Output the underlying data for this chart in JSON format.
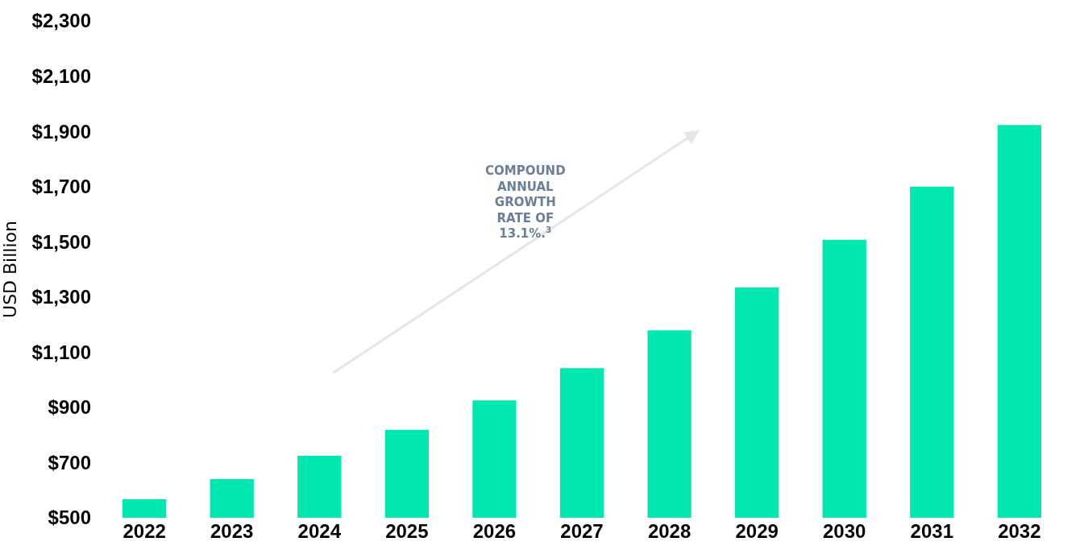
{
  "chart_data": {
    "type": "bar",
    "ylabel": "USD Billion",
    "categories": [
      "2022",
      "2023",
      "2024",
      "2025",
      "2026",
      "2027",
      "2028",
      "2029",
      "2030",
      "2031",
      "2032"
    ],
    "values": [
      567,
      640,
      725,
      819,
      925,
      1042,
      1179,
      1334,
      1507,
      1700,
      1923
    ],
    "color": "#00e8b0",
    "ylim": [
      500,
      2300
    ],
    "yticks": [
      {
        "value": 500,
        "label": "$500"
      },
      {
        "value": 700,
        "label": "$700"
      },
      {
        "value": 900,
        "label": "$900"
      },
      {
        "value": 1100,
        "label": "$1,100"
      },
      {
        "value": 1300,
        "label": "$1,300"
      },
      {
        "value": 1500,
        "label": "$1,500"
      },
      {
        "value": 1700,
        "label": "$1,700"
      },
      {
        "value": 1900,
        "label": "$1,900"
      },
      {
        "value": 2100,
        "label": "$2,100"
      },
      {
        "value": 2300,
        "label": "$2,300"
      }
    ],
    "annotations": [
      "COMPOUND ANNUAL GROWTH RATE OF 13.1%.$^{3}$"
    ]
  }
}
